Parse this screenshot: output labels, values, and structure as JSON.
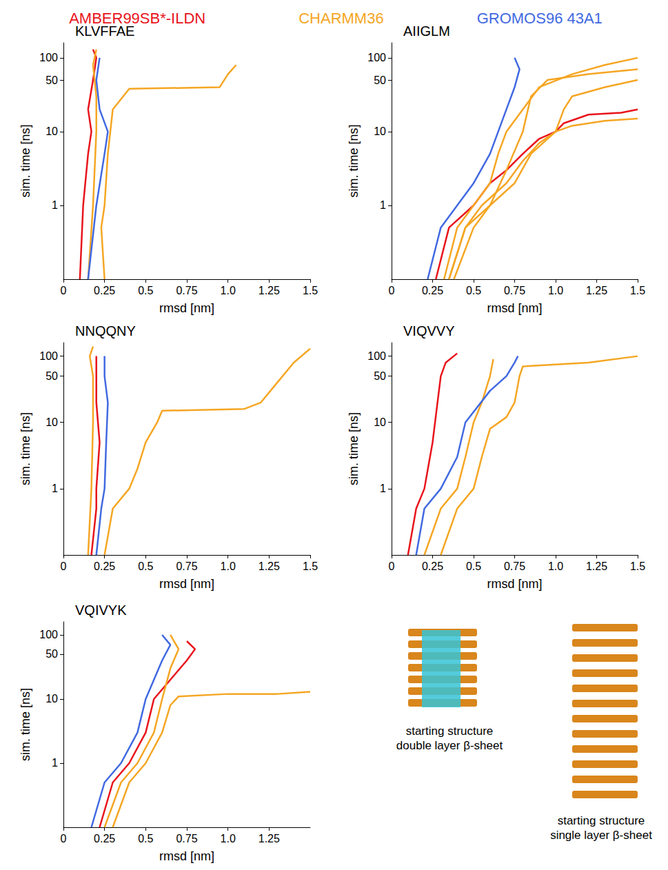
{
  "chart_data": [
    {
      "type": "line",
      "title": "KLVFFAE",
      "x_label": "rmsd [nm]",
      "y_label": "sim. time [ns]",
      "log": "y",
      "grid": false,
      "legend": "top",
      "xlim": [
        0,
        1.5
      ],
      "ylim": [
        0.1,
        160
      ],
      "xticks": [
        0,
        0.25,
        0.5,
        0.75,
        {
          "value": 1,
          "label": "1.0"
        },
        1.25,
        1.5
      ],
      "yticks": [
        1,
        10,
        50,
        100
      ],
      "series": [
        {
          "name": "AMBER99SB*-ILDN",
          "color": "#e8131b",
          "x": [
            0.1,
            0.12,
            0.15,
            0.17,
            0.15,
            0.18,
            0.2,
            0.18
          ],
          "values": [
            0.1,
            1,
            5,
            10,
            20,
            50,
            100,
            130
          ]
        },
        {
          "name": "CHARMM36",
          "color": "#f5a623",
          "x": [
            0.15,
            0.18,
            0.2,
            0.2,
            0.18,
            0.2
          ],
          "values": [
            0.1,
            1,
            10,
            30,
            80,
            130
          ]
        },
        {
          "name": "CHARMM36",
          "color": "#f5a623",
          "x": [
            0.25,
            0.23,
            0.25,
            0.27,
            0.3,
            0.4,
            0.95,
            1.0,
            1.05
          ],
          "values": [
            0.1,
            0.5,
            1,
            5,
            20,
            38,
            40,
            60,
            80
          ]
        },
        {
          "name": "GROMOS96 43A1",
          "color": "#4169e1",
          "x": [
            0.15,
            0.2,
            0.25,
            0.27,
            0.22,
            0.2,
            0.22
          ],
          "values": [
            0.1,
            1,
            5,
            10,
            20,
            50,
            100
          ]
        }
      ]
    },
    {
      "type": "line",
      "title": "AIIGLM",
      "x_label": "rmsd [nm]",
      "y_label": "sim. time [ns]",
      "log": "y",
      "grid": false,
      "legend": "top",
      "xlim": [
        0,
        1.5
      ],
      "ylim": [
        0.1,
        160
      ],
      "xticks": [
        0,
        0.25,
        0.5,
        0.75,
        {
          "value": 1,
          "label": "1.0"
        },
        1.25,
        1.5
      ],
      "yticks": [
        1,
        10,
        50,
        100
      ],
      "series": [
        {
          "name": "AMBER99SB*-ILDN",
          "color": "#e8131b",
          "x": [
            0.27,
            0.35,
            0.5,
            0.6,
            0.7,
            0.8,
            0.9,
            1.0,
            1.05,
            1.2,
            1.4,
            1.5
          ],
          "values": [
            0.1,
            0.5,
            1,
            2,
            3,
            5,
            8,
            10,
            13,
            17,
            18,
            20
          ]
        },
        {
          "name": "CHARMM36",
          "color": "#f5a623",
          "x": [
            0.32,
            0.4,
            0.5,
            0.6,
            0.65,
            0.7,
            0.8,
            0.9,
            1.1,
            1.3,
            1.5
          ],
          "values": [
            0.1,
            0.5,
            1,
            2,
            5,
            10,
            20,
            40,
            60,
            80,
            100
          ]
        },
        {
          "name": "CHARMM36",
          "color": "#f5a623",
          "x": [
            0.35,
            0.45,
            0.55,
            0.7,
            0.8,
            0.9,
            1.0,
            1.1,
            1.3,
            1.5
          ],
          "values": [
            0.1,
            0.5,
            1,
            2,
            4,
            7,
            10,
            12,
            14,
            15
          ]
        },
        {
          "name": "CHARMM36",
          "color": "#f5a623",
          "x": [
            0.38,
            0.5,
            0.6,
            0.75,
            0.85,
            1.0,
            1.05,
            1.1,
            1.3,
            1.5
          ],
          "values": [
            0.1,
            0.5,
            1,
            2,
            5,
            10,
            20,
            30,
            40,
            50
          ]
        },
        {
          "name": "CHARMM36",
          "color": "#f5a623",
          "x": [
            0.35,
            0.45,
            0.6,
            0.7,
            0.8,
            0.85,
            0.95,
            1.2,
            1.5
          ],
          "values": [
            0.1,
            0.5,
            1,
            3,
            10,
            30,
            50,
            60,
            70
          ]
        },
        {
          "name": "GROMOS96 43A1",
          "color": "#4169e1",
          "x": [
            0.22,
            0.3,
            0.4,
            0.5,
            0.6,
            0.65,
            0.7,
            0.75,
            0.78,
            0.75
          ],
          "values": [
            0.1,
            0.5,
            1,
            2,
            5,
            10,
            20,
            40,
            70,
            100
          ]
        }
      ]
    },
    {
      "type": "line",
      "title": "NNQQNY",
      "x_label": "rmsd [nm]",
      "y_label": "sim. time [ns]",
      "log": "y",
      "grid": false,
      "legend": "top",
      "xlim": [
        0,
        1.5
      ],
      "ylim": [
        0.1,
        160
      ],
      "xticks": [
        0,
        0.25,
        0.5,
        0.75,
        {
          "value": 1,
          "label": "1.0"
        },
        1.25,
        1.5
      ],
      "yticks": [
        1,
        10,
        50,
        100
      ],
      "series": [
        {
          "name": "AMBER99SB*-ILDN",
          "color": "#e8131b",
          "x": [
            0.17,
            0.2,
            0.2,
            0.22,
            0.2,
            0.2,
            0.2
          ],
          "values": [
            0.1,
            0.5,
            1,
            5,
            20,
            50,
            100
          ]
        },
        {
          "name": "CHARMM36",
          "color": "#f5a623",
          "x": [
            0.15,
            0.17,
            0.18,
            0.18,
            0.16,
            0.18
          ],
          "values": [
            0.1,
            1,
            10,
            50,
            100,
            140
          ]
        },
        {
          "name": "CHARMM36",
          "color": "#f5a623",
          "x": [
            0.25,
            0.3,
            0.4,
            0.45,
            0.5,
            0.57,
            0.6,
            1.1,
            1.2,
            1.3,
            1.4,
            1.5
          ],
          "values": [
            0.1,
            0.5,
            1,
            2,
            5,
            10,
            15,
            16,
            20,
            40,
            80,
            130
          ]
        },
        {
          "name": "GROMOS96 43A1",
          "color": "#4169e1",
          "x": [
            0.2,
            0.23,
            0.25,
            0.26,
            0.27,
            0.25,
            0.25
          ],
          "values": [
            0.1,
            0.5,
            1,
            5,
            20,
            50,
            100
          ]
        }
      ]
    },
    {
      "type": "line",
      "title": "VIQVVY",
      "x_label": "rmsd [nm]",
      "y_label": "sim. time [ns]",
      "log": "y",
      "grid": false,
      "legend": "top",
      "xlim": [
        0,
        1.5
      ],
      "ylim": [
        0.1,
        160
      ],
      "xticks": [
        0,
        0.25,
        0.5,
        0.75,
        {
          "value": 1,
          "label": "1.0"
        },
        1.25,
        1.5
      ],
      "yticks": [
        1,
        10,
        50,
        100
      ],
      "series": [
        {
          "name": "AMBER99SB*-ILDN",
          "color": "#e8131b",
          "x": [
            0.1,
            0.15,
            0.2,
            0.25,
            0.28,
            0.3,
            0.33,
            0.4
          ],
          "values": [
            0.1,
            0.5,
            1,
            5,
            20,
            50,
            80,
            110
          ]
        },
        {
          "name": "CHARMM36",
          "color": "#f5a623",
          "x": [
            0.2,
            0.3,
            0.4,
            0.45,
            0.5,
            0.55,
            0.6,
            0.62
          ],
          "values": [
            0.1,
            0.5,
            1,
            3,
            10,
            20,
            50,
            90
          ]
        },
        {
          "name": "CHARMM36",
          "color": "#f5a623",
          "x": [
            0.3,
            0.4,
            0.5,
            0.55,
            0.6,
            0.7,
            0.75,
            0.78,
            0.8,
            1.2,
            1.5
          ],
          "values": [
            0.1,
            0.5,
            1,
            3,
            8,
            12,
            20,
            50,
            70,
            80,
            100
          ]
        },
        {
          "name": "GROMOS96 43A1",
          "color": "#4169e1",
          "x": [
            0.15,
            0.2,
            0.3,
            0.4,
            0.45,
            0.6,
            0.7,
            0.75,
            0.77
          ],
          "values": [
            0.1,
            0.5,
            1,
            3,
            10,
            30,
            50,
            80,
            100
          ]
        }
      ]
    },
    {
      "type": "line",
      "title": "VQIVYK",
      "x_label": "rmsd [nm]",
      "y_label": "sim. time [ns]",
      "log": "y",
      "grid": false,
      "legend": "top",
      "xlim": [
        0,
        1.5
      ],
      "ylim": [
        0.1,
        160
      ],
      "xticks": [
        0,
        0.25,
        0.5,
        0.75,
        {
          "value": 1,
          "label": "1.0"
        },
        1.25
      ],
      "yticks": [
        1,
        10,
        50,
        100
      ],
      "series": [
        {
          "name": "AMBER99SB*-ILDN",
          "color": "#e8131b",
          "x": [
            0.22,
            0.3,
            0.4,
            0.5,
            0.55,
            0.65,
            0.75,
            0.8,
            0.75
          ],
          "values": [
            0.1,
            0.5,
            1,
            3,
            10,
            20,
            40,
            60,
            80
          ]
        },
        {
          "name": "CHARMM36",
          "color": "#f5a623",
          "x": [
            0.25,
            0.35,
            0.45,
            0.55,
            0.6,
            0.65,
            0.7,
            0.65
          ],
          "values": [
            0.1,
            0.5,
            1,
            3,
            10,
            30,
            60,
            100
          ]
        },
        {
          "name": "CHARMM36",
          "color": "#f5a623",
          "x": [
            0.3,
            0.4,
            0.5,
            0.6,
            0.65,
            0.7,
            1.0,
            1.3,
            1.5
          ],
          "values": [
            0.1,
            0.5,
            1,
            3,
            8,
            11,
            12,
            12,
            13
          ]
        },
        {
          "name": "GROMOS96 43A1",
          "color": "#4169e1",
          "x": [
            0.17,
            0.25,
            0.35,
            0.45,
            0.5,
            0.55,
            0.6,
            0.65,
            0.6
          ],
          "values": [
            0.1,
            0.5,
            1,
            3,
            10,
            20,
            40,
            70,
            100
          ]
        }
      ]
    }
  ],
  "annotations": [
    "starting structure\ndouble layer β-sheet",
    "starting structure\nsingle layer β-sheet"
  ]
}
